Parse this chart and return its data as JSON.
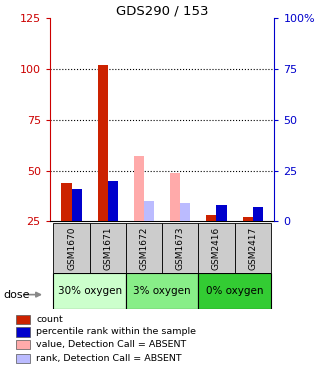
{
  "title": "GDS290 / 153",
  "samples": [
    "GSM1670",
    "GSM1671",
    "GSM1672",
    "GSM1673",
    "GSM2416",
    "GSM2417"
  ],
  "red_bars": [
    44,
    102,
    0,
    0,
    28,
    27
  ],
  "blue_bars": [
    41,
    45,
    0,
    0,
    33,
    32
  ],
  "pink_bars": [
    0,
    0,
    57,
    49,
    0,
    0
  ],
  "lavender_bars": [
    0,
    0,
    35,
    34,
    0,
    0
  ],
  "left_ylim": [
    25,
    125
  ],
  "left_yticks": [
    25,
    50,
    75,
    100,
    125
  ],
  "right_yticks": [
    25,
    50,
    75,
    100,
    125
  ],
  "right_yticklabels": [
    "0",
    "25",
    "50",
    "75",
    "100%"
  ],
  "hlines": [
    50,
    75,
    100
  ],
  "bar_bottom": 25,
  "left_ycolor": "#cc0000",
  "right_ycolor": "#0000cc",
  "groups": [
    {
      "label": "30% oxygen",
      "i0": 0,
      "i1": 1,
      "color": "#ccffcc"
    },
    {
      "label": "3% oxygen",
      "i0": 2,
      "i1": 3,
      "color": "#88ee88"
    },
    {
      "label": "0% oxygen",
      "i0": 4,
      "i1": 5,
      "color": "#33cc33"
    }
  ],
  "legend_items": [
    {
      "color": "#cc2200",
      "label": "count"
    },
    {
      "color": "#0000cc",
      "label": "percentile rank within the sample"
    },
    {
      "color": "#ffaaaa",
      "label": "value, Detection Call = ABSENT"
    },
    {
      "color": "#bbbbff",
      "label": "rank, Detection Call = ABSENT"
    }
  ]
}
